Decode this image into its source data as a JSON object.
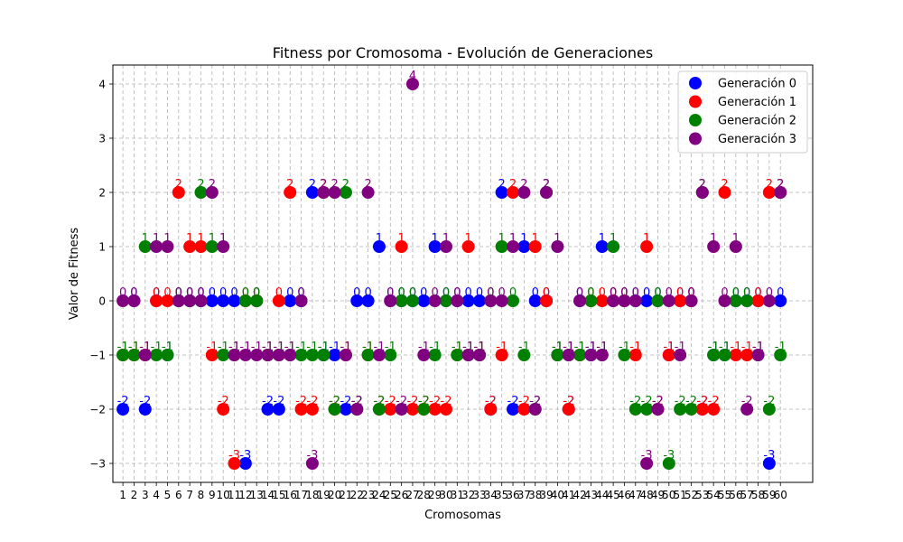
{
  "chart_data": {
    "type": "scatter",
    "title": "Fitness por Cromosoma - Evolución de Generaciones",
    "xlabel": "Cromosomas",
    "ylabel": "Valor de Fitness",
    "x": [
      1,
      2,
      3,
      4,
      5,
      6,
      7,
      8,
      9,
      10,
      11,
      12,
      13,
      14,
      15,
      16,
      17,
      18,
      19,
      20,
      21,
      22,
      23,
      24,
      25,
      26,
      27,
      28,
      29,
      30,
      31,
      32,
      33,
      34,
      35,
      36,
      37,
      38,
      39,
      40,
      41,
      42,
      43,
      44,
      45,
      46,
      47,
      48,
      49,
      50,
      51,
      52,
      53,
      54,
      55,
      56,
      57,
      58,
      59,
      60
    ],
    "xlim": [
      0.1,
      62.9
    ],
    "ylim": [
      -3.35,
      4.35
    ],
    "yticks": [
      -3,
      -2,
      -1,
      0,
      1,
      2,
      3,
      4
    ],
    "grid": true,
    "legend_position": "top-right",
    "series": [
      {
        "name": "Generación 0",
        "color": "#0000ff",
        "values": [
          -2,
          0,
          -2,
          0,
          -1,
          0,
          0,
          0,
          0,
          0,
          0,
          -3,
          0,
          -2,
          -2,
          0,
          0,
          2,
          -1,
          -1,
          -2,
          0,
          0,
          1,
          0,
          0,
          0,
          0,
          1,
          0,
          0,
          0,
          0,
          -2,
          2,
          -2,
          1,
          0,
          0,
          -1,
          -2,
          0,
          -1,
          1,
          0,
          0,
          0,
          0,
          0,
          -1,
          0,
          0,
          -2,
          -1,
          -1,
          0,
          0,
          0,
          -3,
          0
        ]
      },
      {
        "name": "Generación 1",
        "color": "#ff0000",
        "values": [
          -1,
          -1,
          -1,
          0,
          0,
          2,
          1,
          1,
          -1,
          -2,
          -3,
          0,
          0,
          -1,
          0,
          2,
          -2,
          -2,
          2,
          -2,
          -1,
          -2,
          -1,
          -2,
          -2,
          1,
          -2,
          -2,
          -2,
          -2,
          -1,
          1,
          -1,
          -2,
          -1,
          2,
          -2,
          1,
          0,
          -1,
          -2,
          -1,
          0,
          0,
          0,
          0,
          -1,
          1,
          -2,
          -1,
          0,
          0,
          -2,
          -2,
          2,
          -1,
          -1,
          0,
          2,
          2
        ]
      },
      {
        "name": "Generación 2",
        "color": "#008000",
        "values": [
          -1,
          -1,
          1,
          -1,
          -1,
          0,
          0,
          2,
          1,
          -1,
          -1,
          0,
          0,
          -1,
          -1,
          -1,
          -1,
          -1,
          -1,
          -2,
          2,
          -2,
          -1,
          -2,
          -1,
          0,
          0,
          -2,
          -1,
          0,
          -1,
          -1,
          -1,
          0,
          1,
          0,
          -1,
          -2,
          2,
          -1,
          -1,
          -1,
          0,
          -1,
          1,
          -1,
          -2,
          -2,
          0,
          -3,
          -2,
          -2,
          2,
          -1,
          -1,
          0,
          0,
          -1,
          -2,
          -1
        ]
      },
      {
        "name": "Generación 3",
        "color": "#800080",
        "values": [
          0,
          0,
          -1,
          1,
          1,
          0,
          0,
          0,
          2,
          1,
          -1,
          -1,
          -1,
          -1,
          -1,
          -1,
          0,
          -3,
          2,
          2,
          -1,
          -2,
          2,
          -1,
          0,
          -2,
          4,
          -1,
          0,
          1,
          0,
          -1,
          -1,
          0,
          0,
          1,
          2,
          -2,
          2,
          1,
          -1,
          0,
          -1,
          -1,
          0,
          0,
          0,
          -3,
          -2,
          0,
          -1,
          0,
          2,
          1,
          0,
          1,
          -2,
          -1,
          0,
          2
        ]
      }
    ]
  }
}
